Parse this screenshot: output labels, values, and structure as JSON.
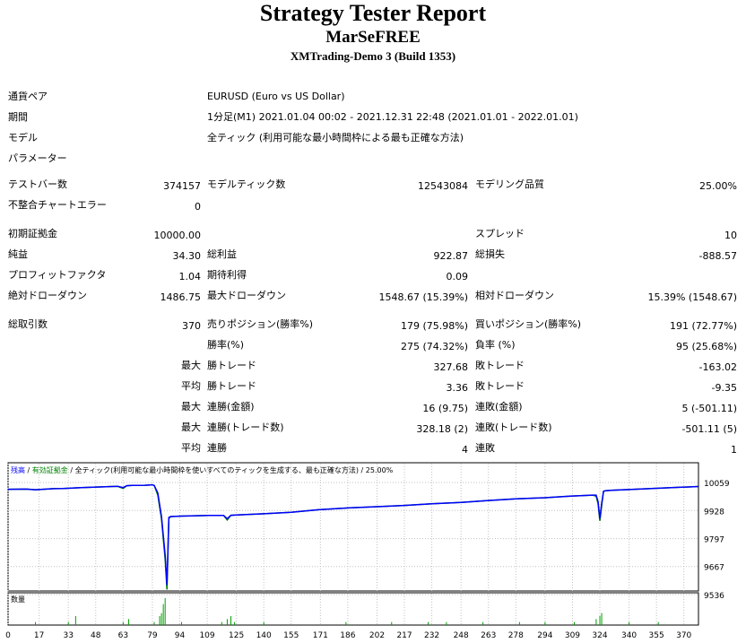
{
  "header": {
    "title": "Strategy Tester Report",
    "expert": "MarSeFREE",
    "server": "XMTrading-Demo 3 (Build 1353)"
  },
  "info": [
    {
      "label": "通貨ペア",
      "value": "EURUSD (Euro vs US Dollar)"
    },
    {
      "label": "期間",
      "value": "1分足(M1) 2021.01.04 00:02 - 2021.12.31 22:48 (2021.01.01 - 2022.01.01)"
    },
    {
      "label": "モデル",
      "value": "全ティック (利用可能な最小時間枠による最も正確な方法)"
    },
    {
      "label": "パラメーター",
      "value": ""
    }
  ],
  "stats": {
    "bars_label": "テストバー数",
    "bars": "374157",
    "ticks_label": "モデルティック数",
    "ticks": "12543084",
    "quality_label": "モデリング品質",
    "quality": "25.00%",
    "mismatch_label": "不整合チャートエラー",
    "mismatch": "0",
    "deposit_label": "初期証拠金",
    "deposit": "10000.00",
    "spread_label": "スプレッド",
    "spread": "10",
    "net_label": "純益",
    "net": "34.30",
    "gross_profit_label": "総利益",
    "gross_profit": "922.87",
    "gross_loss_label": "総損失",
    "gross_loss": "-888.57",
    "pf_label": "プロフィットファクタ",
    "pf": "1.04",
    "expected_label": "期待利得",
    "expected": "0.09",
    "abs_dd_label": "絶対ドローダウン",
    "abs_dd": "1486.75",
    "max_dd_label": "最大ドローダウン",
    "max_dd": "1548.67 (15.39%)",
    "rel_dd_label": "相対ドローダウン",
    "rel_dd": "15.39% (1548.67)",
    "trades_label": "総取引数",
    "trades": "370",
    "short_label": "売りポジション(勝率%)",
    "short": "179 (75.98%)",
    "long_label": "買いポジション(勝率%)",
    "long": "191 (72.77%)",
    "win_label": "勝率(%)",
    "win": "275 (74.32%)",
    "loss_label": "負率 (%)",
    "loss": "95 (25.68%)",
    "max_label": "最大",
    "avg_label": "平均",
    "largest_win_label": "勝トレード",
    "largest_win": "327.68",
    "largest_loss_label": "敗トレード",
    "largest_loss": "-163.02",
    "avg_win_label": "勝トレード",
    "avg_win": "3.36",
    "avg_loss_label": "敗トレード",
    "avg_loss": "-9.35",
    "max_cons_wins_label": "連勝(金額)",
    "max_cons_wins": "16 (9.75)",
    "max_cons_losses_label": "連敗(金額)",
    "max_cons_losses": "5 (-501.11)",
    "max_cons_profit_label": "連勝(トレード数)",
    "max_cons_profit": "328.18 (2)",
    "max_cons_loss_label": "連敗(トレード数)",
    "max_cons_loss": "-501.11 (5)",
    "avg_cons_wins_label": "連勝",
    "avg_cons_wins": "4",
    "avg_cons_losses_label": "連敗",
    "avg_cons_losses": "1"
  },
  "chart_data": {
    "type": "line",
    "legend": [
      "残高",
      "有効証拠金",
      "全ティック(利用可能な最小時間枠を使いすべてのティックを生成する、最も正確な方法)",
      "25.00%"
    ],
    "legend_colors": [
      "#0000ff",
      "#008000",
      "#000000",
      "#000000"
    ],
    "ylim": [
      9536,
      10059
    ],
    "yticks": [
      10059,
      9928,
      9797,
      9667,
      9536
    ],
    "xlim": [
      0,
      378
    ],
    "xticks": [
      0,
      17,
      33,
      48,
      63,
      79,
      94,
      109,
      125,
      140,
      155,
      171,
      186,
      202,
      217,
      232,
      248,
      263,
      278,
      294,
      309,
      324,
      340,
      355,
      370
    ],
    "volume_label": "数量",
    "series": [
      {
        "name": "残高",
        "color": "#0000ff",
        "x": [
          0,
          10,
          15,
          25,
          30,
          40,
          50,
          60,
          63,
          65,
          68,
          75,
          79,
          80,
          82,
          84,
          86,
          87,
          88,
          89,
          95,
          110,
          118,
          120,
          122,
          125,
          140,
          155,
          170,
          186,
          202,
          217,
          232,
          248,
          263,
          278,
          294,
          309,
          320,
          322,
          323,
          324,
          325,
          326,
          327,
          330,
          340,
          355,
          378
        ],
        "y": [
          10027,
          10028,
          10025,
          10030,
          10031,
          10035,
          10038,
          10041,
          10035,
          10044,
          10045,
          10046,
          10048,
          10045,
          10010,
          9900,
          9720,
          9580,
          9896,
          9900,
          9902,
          9905,
          9905,
          9890,
          9906,
          9907,
          9913,
          9920,
          9932,
          9940,
          9946,
          9952,
          9960,
          9966,
          9975,
          9983,
          9988,
          9996,
          10000,
          10000,
          9970,
          9890,
          9960,
          10018,
          10020,
          10022,
          10026,
          10032,
          10040
        ]
      },
      {
        "name": "有効証拠金",
        "color": "#008000",
        "x": [
          0,
          10,
          15,
          25,
          30,
          40,
          50,
          60,
          63,
          65,
          68,
          75,
          79,
          80,
          82,
          84,
          86,
          87,
          88,
          89,
          95,
          110,
          118,
          120,
          122,
          125,
          140,
          155,
          170,
          186,
          202,
          217,
          232,
          248,
          263,
          278,
          294,
          309,
          320,
          322,
          323,
          324,
          325,
          326,
          327,
          330,
          340,
          355,
          378
        ],
        "y": [
          10027,
          10028,
          10025,
          10030,
          10031,
          10035,
          10038,
          10041,
          10031,
          10044,
          10045,
          10046,
          10048,
          10045,
          10000,
          9890,
          9700,
          9560,
          9890,
          9900,
          9902,
          9905,
          9905,
          9884,
          9906,
          9907,
          9913,
          9920,
          9932,
          9940,
          9946,
          9952,
          9960,
          9966,
          9975,
          9983,
          9988,
          9996,
          10000,
          9995,
          9960,
          9880,
          9950,
          10018,
          10020,
          10022,
          10026,
          10032,
          10040
        ]
      }
    ],
    "volume": {
      "x": [
        15,
        33,
        37,
        63,
        66,
        80,
        83,
        84,
        85,
        86,
        95,
        117,
        120,
        122,
        124,
        140,
        185,
        210,
        230,
        240,
        260,
        280,
        294,
        310,
        322,
        324,
        325,
        340,
        356
      ],
      "y": [
        1,
        1,
        3,
        1,
        2,
        1,
        3,
        4,
        7,
        9,
        1,
        1,
        2,
        3,
        1,
        1,
        1,
        1,
        1,
        1,
        1,
        1,
        1,
        1,
        2,
        3,
        4,
        1,
        1
      ]
    }
  }
}
